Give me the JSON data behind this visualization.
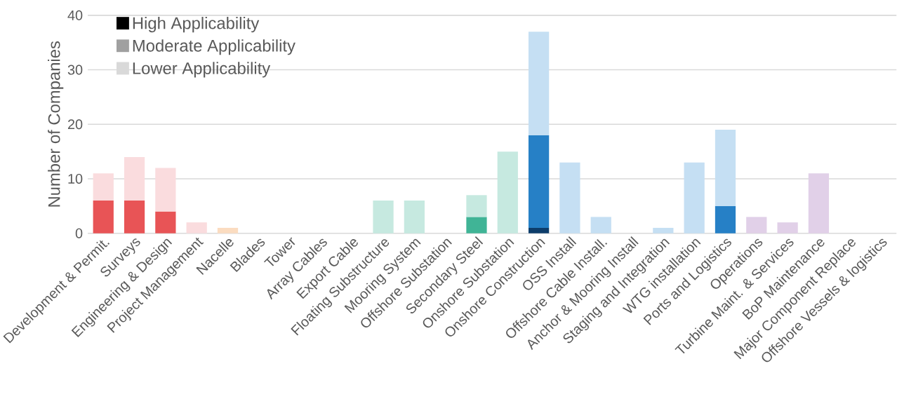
{
  "chart_data": {
    "type": "bar",
    "stacked": true,
    "ylabel": "Number of Companies",
    "categories": [
      "Development & Permit.",
      "Surveys",
      "Engineering & Design",
      "Project Management",
      "Nacelle",
      "Blades",
      "Tower",
      "Array Cables",
      "Export Cable",
      "Floating Substructure",
      "Mooring System",
      "Offshore Substation",
      "Secondary Steel",
      "Onshore Substation",
      "Onshore Construction",
      "OSS Install",
      "Offshore Cable Install.",
      "Anchor & Mooring Install",
      "Staging and Integration",
      "WTG installation",
      "Ports and Logistics",
      "Operations",
      "Turbine Maint. & Services",
      "BoP Maintenance",
      "Major Component Replace",
      "Offshore Vessels & logistics"
    ],
    "series": [
      {
        "color": "#000000",
        "values": [
          0,
          0,
          0,
          0,
          0,
          0,
          0,
          0,
          0,
          0,
          0,
          0,
          0,
          0,
          1,
          0,
          0,
          0,
          0,
          0,
          0,
          0,
          0,
          0,
          0,
          0
        ],
        "colors": [
          "#e85456",
          "#e85456",
          "#e85456",
          "#e85456",
          "#f5b98a",
          "#f5b98a",
          "#f5b98a",
          "#f5b98a",
          "#f5b98a",
          "#40b496",
          "#40b496",
          "#40b496",
          "#40b496",
          "#40b496",
          "#0d3d6b",
          "#0d3d6b",
          "#0d3d6b",
          "#0d3d6b",
          "#0d3d6b",
          "#0d3d6b",
          "#0d3d6b",
          "#b89ccc",
          "#b89ccc",
          "#b89ccc",
          "#b89ccc",
          "#b89ccc"
        ]
      },
      {
        "color": "#a0a0a0",
        "values": [
          6,
          6,
          4,
          0,
          0,
          0,
          0,
          0,
          0,
          0,
          0,
          0,
          3,
          0,
          17,
          0,
          0,
          0,
          0,
          0,
          5,
          0,
          0,
          0,
          0,
          0
        ],
        "colors": [
          "#e85456",
          "#e85456",
          "#e85456",
          "#e85456",
          "#f5b98a",
          "#f5b98a",
          "#f5b98a",
          "#f5b98a",
          "#f5b98a",
          "#40b496",
          "#40b496",
          "#40b496",
          "#40b496",
          "#40b496",
          "#2680c6",
          "#2680c6",
          "#2680c6",
          "#2680c6",
          "#2680c6",
          "#2680c6",
          "#2680c6",
          "#b89ccc",
          "#b89ccc",
          "#b89ccc",
          "#b89ccc",
          "#b89ccc"
        ]
      },
      {
        "color": "#d9d9d9",
        "values": [
          5,
          8,
          8,
          2,
          1,
          0,
          0,
          0,
          0,
          6,
          6,
          0,
          4,
          15,
          19,
          13,
          3,
          0,
          1,
          13,
          14,
          3,
          2,
          11,
          0,
          0
        ],
        "colors": [
          "#fadcde",
          "#fadcde",
          "#fadcde",
          "#fadcde",
          "#fbdcc0",
          "#fbdcc0",
          "#fbdcc0",
          "#fbdcc0",
          "#fbdcc0",
          "#c6e9e0",
          "#c6e9e0",
          "#c6e9e0",
          "#c6e9e0",
          "#c6e9e0",
          "#c5dff3",
          "#c5dff3",
          "#c5dff3",
          "#c5dff3",
          "#c5dff3",
          "#c5dff3",
          "#c5dff3",
          "#e1d0e8",
          "#e1d0e8",
          "#e1d0e8",
          "#e1d0e8",
          "#e1d0e8"
        ]
      }
    ],
    "annotations": [
      "High Applicability",
      "Moderate Applicability",
      "Lower Applicability"
    ],
    "ylim": [
      0,
      40
    ],
    "yticks": [
      0,
      10,
      20,
      30,
      40
    ],
    "grid": "y"
  }
}
